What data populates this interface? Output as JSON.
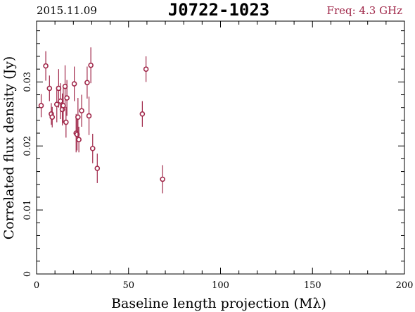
{
  "header": {
    "date": "2015.11.09",
    "source": "J0722-1023",
    "freq": "Freq: 4.3 GHz"
  },
  "colors": {
    "marker": "#a0284a",
    "freq_text": "#a0284a",
    "axis": "#000000"
  },
  "chart_data": {
    "type": "scatter",
    "title": "J0722-1023",
    "xlabel": "Baseline length projection (Mλ)",
    "ylabel": "Correlated flux density (Jy)",
    "xlim": [
      0,
      200
    ],
    "ylim": [
      0,
      0.0395
    ],
    "x_ticks": [
      0,
      50,
      100,
      150,
      200
    ],
    "x_tick_labels": [
      "0",
      "50",
      "100",
      "150",
      "200"
    ],
    "y_ticks": [
      0,
      0.01,
      0.02,
      0.03
    ],
    "y_tick_labels": [
      "0",
      "0.01",
      "0.02",
      "0.03"
    ],
    "grid": false,
    "points": [
      {
        "x": 2.5,
        "y": 0.0263,
        "err": 0.0018
      },
      {
        "x": 5.0,
        "y": 0.0325,
        "err": 0.0023
      },
      {
        "x": 7.0,
        "y": 0.029,
        "err": 0.002
      },
      {
        "x": 8.0,
        "y": 0.025,
        "err": 0.0017
      },
      {
        "x": 8.5,
        "y": 0.0245,
        "err": 0.0016
      },
      {
        "x": 11.0,
        "y": 0.0265,
        "err": 0.0028
      },
      {
        "x": 12.0,
        "y": 0.029,
        "err": 0.003
      },
      {
        "x": 13.0,
        "y": 0.027,
        "err": 0.0028
      },
      {
        "x": 14.0,
        "y": 0.0257,
        "err": 0.0025
      },
      {
        "x": 14.5,
        "y": 0.0263,
        "err": 0.0027
      },
      {
        "x": 15.5,
        "y": 0.0293,
        "err": 0.0033
      },
      {
        "x": 16.0,
        "y": 0.0237,
        "err": 0.0024
      },
      {
        "x": 16.5,
        "y": 0.0275,
        "err": 0.0028
      },
      {
        "x": 20.5,
        "y": 0.0297,
        "err": 0.0027
      },
      {
        "x": 21.5,
        "y": 0.022,
        "err": 0.003
      },
      {
        "x": 22.0,
        "y": 0.0218,
        "err": 0.0025
      },
      {
        "x": 22.5,
        "y": 0.0245,
        "err": 0.003
      },
      {
        "x": 23.0,
        "y": 0.021,
        "err": 0.002
      },
      {
        "x": 24.5,
        "y": 0.0255,
        "err": 0.0025
      },
      {
        "x": 27.5,
        "y": 0.0299,
        "err": 0.0025
      },
      {
        "x": 28.5,
        "y": 0.0247,
        "err": 0.003
      },
      {
        "x": 29.5,
        "y": 0.0326,
        "err": 0.0028
      },
      {
        "x": 30.5,
        "y": 0.0196,
        "err": 0.0023
      },
      {
        "x": 33.0,
        "y": 0.0165,
        "err": 0.0023
      },
      {
        "x": 57.5,
        "y": 0.025,
        "err": 0.002
      },
      {
        "x": 59.5,
        "y": 0.032,
        "err": 0.002
      },
      {
        "x": 68.5,
        "y": 0.0148,
        "err": 0.0022
      }
    ]
  }
}
